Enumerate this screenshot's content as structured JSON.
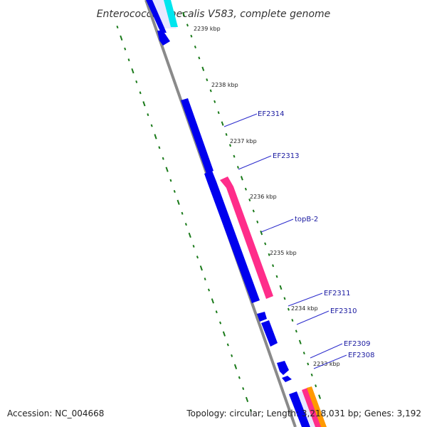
{
  "title": "Enterococcus faecalis V583, complete genome",
  "accession": "Accession: NC_004668",
  "summary": "Topology: circular; Length: 3,218,031 bp; Genes: 3,192",
  "colors": {
    "backbone": "#8a8a8a",
    "forward_gene": "#0000ee",
    "reverse_gene": "#ff2d8a",
    "cds_cyan": "#00e5ee",
    "cds_orange": "#ff9900",
    "gc_ticks": "#1a7a1a",
    "label_text": "#1a1aa0"
  },
  "kbp_marks": [
    "2239 kbp",
    "2238 kbp",
    "2237 kbp",
    "2236 kbp",
    "2235 kbp",
    "2234 kbp",
    "2233 kbp"
  ],
  "gene_labels": [
    "EF2314",
    "EF2313",
    "topB-2",
    "EF2311",
    "EF2310",
    "EF2309",
    "EF2308"
  ]
}
